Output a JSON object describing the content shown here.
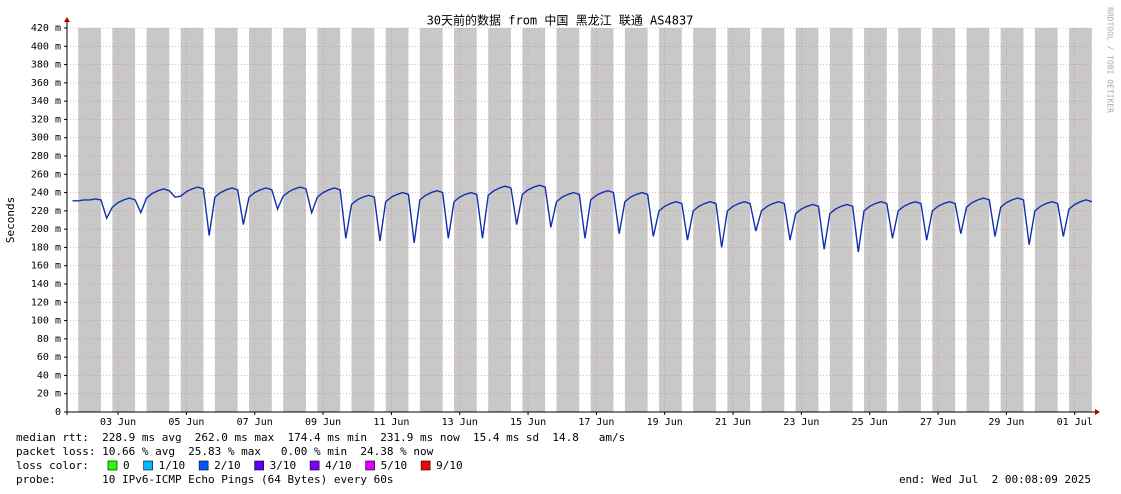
{
  "chart_data": {
    "type": "line",
    "title": "30天前的数据 from 中国 黑龙江 联通 AS4837",
    "y_label": "Seconds",
    "watermark": "RRDTOOL / TOBI OETIKER",
    "grid": true,
    "xlim": [
      "2025-06-02T00:08:09",
      "2025-07-02T00:08:09"
    ],
    "xticks": [
      {
        "value": "2025-06-03T12:00",
        "label": "03 Jun"
      },
      {
        "value": "2025-06-05T12:00",
        "label": "05 Jun"
      },
      {
        "value": "2025-06-07T12:00",
        "label": "07 Jun"
      },
      {
        "value": "2025-06-09T12:00",
        "label": "09 Jun"
      },
      {
        "value": "2025-06-11T12:00",
        "label": "11 Jun"
      },
      {
        "value": "2025-06-13T12:00",
        "label": "13 Jun"
      },
      {
        "value": "2025-06-15T12:00",
        "label": "15 Jun"
      },
      {
        "value": "2025-06-17T12:00",
        "label": "17 Jun"
      },
      {
        "value": "2025-06-19T12:00",
        "label": "19 Jun"
      },
      {
        "value": "2025-06-21T12:00",
        "label": "21 Jun"
      },
      {
        "value": "2025-06-23T12:00",
        "label": "23 Jun"
      },
      {
        "value": "2025-06-25T12:00",
        "label": "25 Jun"
      },
      {
        "value": "2025-06-27T12:00",
        "label": "27 Jun"
      },
      {
        "value": "2025-06-29T12:00",
        "label": "29 Jun"
      },
      {
        "value": "2025-07-01T12:00",
        "label": "01 Jul"
      }
    ],
    "ylim": [
      0,
      0.42
    ],
    "yticks": [
      0,
      {
        "value": 0.02,
        "label": "20 m"
      },
      {
        "value": 0.04,
        "label": "40 m"
      },
      {
        "value": 0.06,
        "label": "60 m"
      },
      {
        "value": 0.08,
        "label": "80 m"
      },
      {
        "value": 0.1,
        "label": "100 m"
      },
      {
        "value": 0.12,
        "label": "120 m"
      },
      {
        "value": 0.14,
        "label": "140 m"
      },
      {
        "value": 0.16,
        "label": "160 m"
      },
      {
        "value": 0.18,
        "label": "180 m"
      },
      {
        "value": 0.2,
        "label": "200 m"
      },
      {
        "value": 0.22,
        "label": "220 m"
      },
      {
        "value": 0.24,
        "label": "240 m"
      },
      {
        "value": 0.26,
        "label": "260 m"
      },
      {
        "value": 0.28,
        "label": "280 m"
      },
      {
        "value": 0.3,
        "label": "300 m"
      },
      {
        "value": 0.32,
        "label": "320 m"
      },
      {
        "value": 0.34,
        "label": "340 m"
      },
      {
        "value": 0.36,
        "label": "360 m"
      },
      {
        "value": 0.38,
        "label": "380 m"
      },
      {
        "value": 0.4,
        "label": "400 m"
      },
      {
        "value": 0.42,
        "label": "420 m"
      }
    ],
    "shade_color": "#c8c8c8",
    "shaded_periods": [
      [
        "2025-06-02T08:00",
        "2025-06-02T23:59"
      ],
      [
        "2025-06-03T08:00",
        "2025-06-03T23:59"
      ],
      [
        "2025-06-04T08:00",
        "2025-06-04T23:59"
      ],
      [
        "2025-06-05T08:00",
        "2025-06-05T23:59"
      ],
      [
        "2025-06-06T08:00",
        "2025-06-06T23:59"
      ],
      [
        "2025-06-07T08:00",
        "2025-06-07T23:59"
      ],
      [
        "2025-06-08T08:00",
        "2025-06-08T23:59"
      ],
      [
        "2025-06-09T08:00",
        "2025-06-09T23:59"
      ],
      [
        "2025-06-10T08:00",
        "2025-06-10T23:59"
      ],
      [
        "2025-06-11T08:00",
        "2025-06-11T23:59"
      ],
      [
        "2025-06-12T08:00",
        "2025-06-12T23:59"
      ],
      [
        "2025-06-13T08:00",
        "2025-06-13T23:59"
      ],
      [
        "2025-06-14T08:00",
        "2025-06-14T23:59"
      ],
      [
        "2025-06-15T08:00",
        "2025-06-15T23:59"
      ],
      [
        "2025-06-16T08:00",
        "2025-06-16T23:59"
      ],
      [
        "2025-06-17T08:00",
        "2025-06-17T23:59"
      ],
      [
        "2025-06-18T08:00",
        "2025-06-18T23:59"
      ],
      [
        "2025-06-19T08:00",
        "2025-06-19T23:59"
      ],
      [
        "2025-06-20T08:00",
        "2025-06-20T23:59"
      ],
      [
        "2025-06-21T08:00",
        "2025-06-21T23:59"
      ],
      [
        "2025-06-22T08:00",
        "2025-06-22T23:59"
      ],
      [
        "2025-06-23T08:00",
        "2025-06-23T23:59"
      ],
      [
        "2025-06-24T08:00",
        "2025-06-24T23:59"
      ],
      [
        "2025-06-25T08:00",
        "2025-06-25T23:59"
      ],
      [
        "2025-06-26T08:00",
        "2025-06-26T23:59"
      ],
      [
        "2025-06-27T08:00",
        "2025-06-27T23:59"
      ],
      [
        "2025-06-28T08:00",
        "2025-06-28T23:59"
      ],
      [
        "2025-06-29T08:00",
        "2025-06-29T23:59"
      ],
      [
        "2025-06-30T08:00",
        "2025-06-30T23:59"
      ],
      [
        "2025-07-01T08:00",
        "2025-07-01T23:59"
      ]
    ],
    "x": [
      "2025-06-02T04:00",
      "2025-06-02T08:00",
      "2025-06-02T12:00",
      "2025-06-02T16:00",
      "2025-06-02T20:00",
      "2025-06-03T00:00",
      "2025-06-03T04:00",
      "2025-06-03T08:00",
      "2025-06-03T12:00",
      "2025-06-03T16:00",
      "2025-06-03T20:00",
      "2025-06-04T00:00",
      "2025-06-04T04:00",
      "2025-06-04T08:00",
      "2025-06-04T12:00",
      "2025-06-04T16:00",
      "2025-06-04T20:00",
      "2025-06-05T00:00",
      "2025-06-05T04:00",
      "2025-06-05T08:00",
      "2025-06-05T12:00",
      "2025-06-05T16:00",
      "2025-06-05T20:00",
      "2025-06-06T00:00",
      "2025-06-06T04:00",
      "2025-06-06T08:00",
      "2025-06-06T12:00",
      "2025-06-06T16:00",
      "2025-06-06T20:00",
      "2025-06-07T00:00",
      "2025-06-07T04:00",
      "2025-06-07T08:00",
      "2025-06-07T12:00",
      "2025-06-07T16:00",
      "2025-06-07T20:00",
      "2025-06-08T00:00",
      "2025-06-08T04:00",
      "2025-06-08T08:00",
      "2025-06-08T12:00",
      "2025-06-08T16:00",
      "2025-06-08T20:00",
      "2025-06-09T00:00",
      "2025-06-09T04:00",
      "2025-06-09T08:00",
      "2025-06-09T12:00",
      "2025-06-09T16:00",
      "2025-06-09T20:00",
      "2025-06-10T00:00",
      "2025-06-10T04:00",
      "2025-06-10T08:00",
      "2025-06-10T12:00",
      "2025-06-10T16:00",
      "2025-06-10T20:00",
      "2025-06-11T00:00",
      "2025-06-11T04:00",
      "2025-06-11T08:00",
      "2025-06-11T12:00",
      "2025-06-11T16:00",
      "2025-06-11T20:00",
      "2025-06-12T00:00",
      "2025-06-12T04:00",
      "2025-06-12T08:00",
      "2025-06-12T12:00",
      "2025-06-12T16:00",
      "2025-06-12T20:00",
      "2025-06-13T00:00",
      "2025-06-13T04:00",
      "2025-06-13T08:00",
      "2025-06-13T12:00",
      "2025-06-13T16:00",
      "2025-06-13T20:00",
      "2025-06-14T00:00",
      "2025-06-14T04:00",
      "2025-06-14T08:00",
      "2025-06-14T12:00",
      "2025-06-14T16:00",
      "2025-06-14T20:00",
      "2025-06-15T00:00",
      "2025-06-15T04:00",
      "2025-06-15T08:00",
      "2025-06-15T12:00",
      "2025-06-15T16:00",
      "2025-06-15T20:00",
      "2025-06-16T00:00",
      "2025-06-16T04:00",
      "2025-06-16T08:00",
      "2025-06-16T12:00",
      "2025-06-16T16:00",
      "2025-06-16T20:00",
      "2025-06-17T00:00",
      "2025-06-17T04:00",
      "2025-06-17T08:00",
      "2025-06-17T12:00",
      "2025-06-17T16:00",
      "2025-06-17T20:00",
      "2025-06-18T00:00",
      "2025-06-18T04:00",
      "2025-06-18T08:00",
      "2025-06-18T12:00",
      "2025-06-18T16:00",
      "2025-06-18T20:00",
      "2025-06-19T00:00",
      "2025-06-19T04:00",
      "2025-06-19T08:00",
      "2025-06-19T12:00",
      "2025-06-19T16:00",
      "2025-06-19T20:00",
      "2025-06-20T00:00",
      "2025-06-20T04:00",
      "2025-06-20T08:00",
      "2025-06-20T12:00",
      "2025-06-20T16:00",
      "2025-06-20T20:00",
      "2025-06-21T00:00",
      "2025-06-21T04:00",
      "2025-06-21T08:00",
      "2025-06-21T12:00",
      "2025-06-21T16:00",
      "2025-06-21T20:00",
      "2025-06-22T00:00",
      "2025-06-22T04:00",
      "2025-06-22T08:00",
      "2025-06-22T12:00",
      "2025-06-22T16:00",
      "2025-06-22T20:00",
      "2025-06-23T00:00",
      "2025-06-23T04:00",
      "2025-06-23T08:00",
      "2025-06-23T12:00",
      "2025-06-23T16:00",
      "2025-06-23T20:00",
      "2025-06-24T00:00",
      "2025-06-24T04:00",
      "2025-06-24T08:00",
      "2025-06-24T12:00",
      "2025-06-24T16:00",
      "2025-06-24T20:00",
      "2025-06-25T00:00",
      "2025-06-25T04:00",
      "2025-06-25T08:00",
      "2025-06-25T12:00",
      "2025-06-25T16:00",
      "2025-06-25T20:00",
      "2025-06-26T00:00",
      "2025-06-26T04:00",
      "2025-06-26T08:00",
      "2025-06-26T12:00",
      "2025-06-26T16:00",
      "2025-06-26T20:00",
      "2025-06-27T00:00",
      "2025-06-27T04:00",
      "2025-06-27T08:00",
      "2025-06-27T12:00",
      "2025-06-27T16:00",
      "2025-06-27T20:00",
      "2025-06-28T00:00",
      "2025-06-28T04:00",
      "2025-06-28T08:00",
      "2025-06-28T12:00",
      "2025-06-28T16:00",
      "2025-06-28T20:00",
      "2025-06-29T00:00",
      "2025-06-29T04:00",
      "2025-06-29T08:00",
      "2025-06-29T12:00",
      "2025-06-29T16:00",
      "2025-06-29T20:00",
      "2025-06-30T00:00",
      "2025-06-30T04:00",
      "2025-06-30T08:00",
      "2025-06-30T12:00",
      "2025-06-30T16:00",
      "2025-06-30T20:00",
      "2025-07-01T00:00",
      "2025-07-01T04:00",
      "2025-07-01T08:00",
      "2025-07-01T12:00",
      "2025-07-01T16:00",
      "2025-07-01T20:00",
      "2025-07-02T00:00"
    ],
    "series": [
      {
        "color": "#1030b0",
        "values": [
          0.231,
          0.231,
          0.232,
          0.232,
          0.233,
          0.232,
          0.212,
          0.224,
          0.229,
          0.232,
          0.234,
          0.232,
          0.218,
          0.234,
          0.239,
          0.242,
          0.244,
          0.242,
          0.235,
          0.236,
          0.241,
          0.244,
          0.246,
          0.244,
          0.193,
          0.235,
          0.24,
          0.243,
          0.245,
          0.243,
          0.205,
          0.235,
          0.24,
          0.243,
          0.245,
          0.243,
          0.222,
          0.236,
          0.241,
          0.244,
          0.246,
          0.244,
          0.218,
          0.235,
          0.24,
          0.243,
          0.245,
          0.243,
          0.19,
          0.227,
          0.232,
          0.235,
          0.237,
          0.235,
          0.187,
          0.23,
          0.235,
          0.238,
          0.24,
          0.238,
          0.185,
          0.232,
          0.237,
          0.24,
          0.242,
          0.24,
          0.19,
          0.23,
          0.235,
          0.238,
          0.24,
          0.238,
          0.19,
          0.237,
          0.242,
          0.245,
          0.247,
          0.245,
          0.205,
          0.238,
          0.243,
          0.246,
          0.248,
          0.246,
          0.202,
          0.23,
          0.235,
          0.238,
          0.24,
          0.238,
          0.19,
          0.232,
          0.237,
          0.24,
          0.242,
          0.24,
          0.195,
          0.23,
          0.235,
          0.238,
          0.24,
          0.238,
          0.192,
          0.22,
          0.225,
          0.228,
          0.23,
          0.228,
          0.188,
          0.22,
          0.225,
          0.228,
          0.23,
          0.228,
          0.18,
          0.22,
          0.225,
          0.228,
          0.23,
          0.228,
          0.198,
          0.22,
          0.225,
          0.228,
          0.23,
          0.228,
          0.188,
          0.217,
          0.222,
          0.225,
          0.227,
          0.225,
          0.178,
          0.217,
          0.222,
          0.225,
          0.227,
          0.225,
          0.175,
          0.22,
          0.225,
          0.228,
          0.23,
          0.228,
          0.19,
          0.22,
          0.225,
          0.228,
          0.23,
          0.228,
          0.188,
          0.22,
          0.225,
          0.228,
          0.23,
          0.228,
          0.195,
          0.224,
          0.229,
          0.232,
          0.234,
          0.232,
          0.192,
          0.224,
          0.229,
          0.232,
          0.234,
          0.232,
          0.183,
          0.22,
          0.225,
          0.228,
          0.23,
          0.228,
          0.192,
          0.222,
          0.227,
          0.23,
          0.232,
          0.23
        ]
      }
    ],
    "stats": [
      "median rtt:  228.9 ms avg  262.0 ms max  174.4 ms min  231.9 ms now  15.4 ms sd  14.8   am/s",
      "packet loss: 10.66 % avg  25.83 % max   0.00 % min  24.38 % now"
    ],
    "loss_legend": {
      "label": "loss color:",
      "items": [
        {
          "label": "0",
          "color": "#26ff00"
        },
        {
          "label": "1/10",
          "color": "#00b8ff"
        },
        {
          "label": "2/10",
          "color": "#0059ff"
        },
        {
          "label": "3/10",
          "color": "#5e00ff"
        },
        {
          "label": "4/10",
          "color": "#7e00ff"
        },
        {
          "label": "5/10",
          "color": "#dd00ff"
        },
        {
          "label": "9/10",
          "color": "#ff0000"
        }
      ]
    },
    "probe": "probe:       10 IPv6-ICMP Echo Pings (64 Bytes) every 60s",
    "end": "end: Wed Jul  2 00:08:09 2025"
  }
}
